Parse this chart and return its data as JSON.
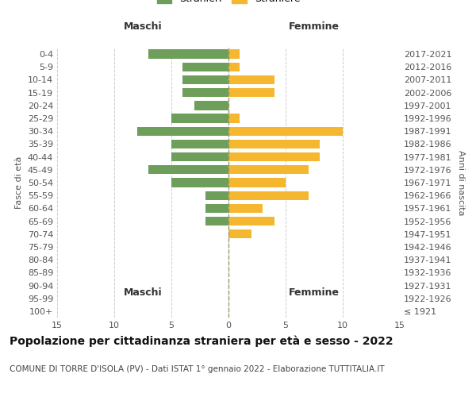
{
  "age_groups": [
    "100+",
    "95-99",
    "90-94",
    "85-89",
    "80-84",
    "75-79",
    "70-74",
    "65-69",
    "60-64",
    "55-59",
    "50-54",
    "45-49",
    "40-44",
    "35-39",
    "30-34",
    "25-29",
    "20-24",
    "15-19",
    "10-14",
    "5-9",
    "0-4"
  ],
  "birth_years": [
    "≤ 1921",
    "1922-1926",
    "1927-1931",
    "1932-1936",
    "1937-1941",
    "1942-1946",
    "1947-1951",
    "1952-1956",
    "1957-1961",
    "1962-1966",
    "1967-1971",
    "1972-1976",
    "1977-1981",
    "1982-1986",
    "1987-1991",
    "1992-1996",
    "1997-2001",
    "2002-2006",
    "2007-2011",
    "2012-2016",
    "2017-2021"
  ],
  "maschi": [
    0,
    0,
    0,
    0,
    0,
    0,
    0,
    2,
    2,
    2,
    5,
    7,
    5,
    5,
    8,
    5,
    3,
    4,
    4,
    4,
    7
  ],
  "femmine": [
    0,
    0,
    0,
    0,
    0,
    0,
    2,
    4,
    3,
    7,
    5,
    7,
    8,
    8,
    10,
    1,
    0,
    4,
    4,
    1,
    1
  ],
  "color_maschi": "#6d9e5a",
  "color_femmine": "#f5b730",
  "color_grid": "#cccccc",
  "color_center_line": "#999966",
  "xlim": 15,
  "title": "Popolazione per cittadinanza straniera per età e sesso - 2022",
  "subtitle": "COMUNE DI TORRE D'ISOLA (PV) - Dati ISTAT 1° gennaio 2022 - Elaborazione TUTTITALIA.IT",
  "ylabel_left": "Fasce di età",
  "ylabel_right": "Anni di nascita",
  "xlabel_maschi": "Maschi",
  "xlabel_femmine": "Femmine",
  "bg_color": "#ffffff",
  "tick_color": "#555555",
  "label_fontsize": 8,
  "title_fontsize": 10,
  "subtitle_fontsize": 7.5
}
